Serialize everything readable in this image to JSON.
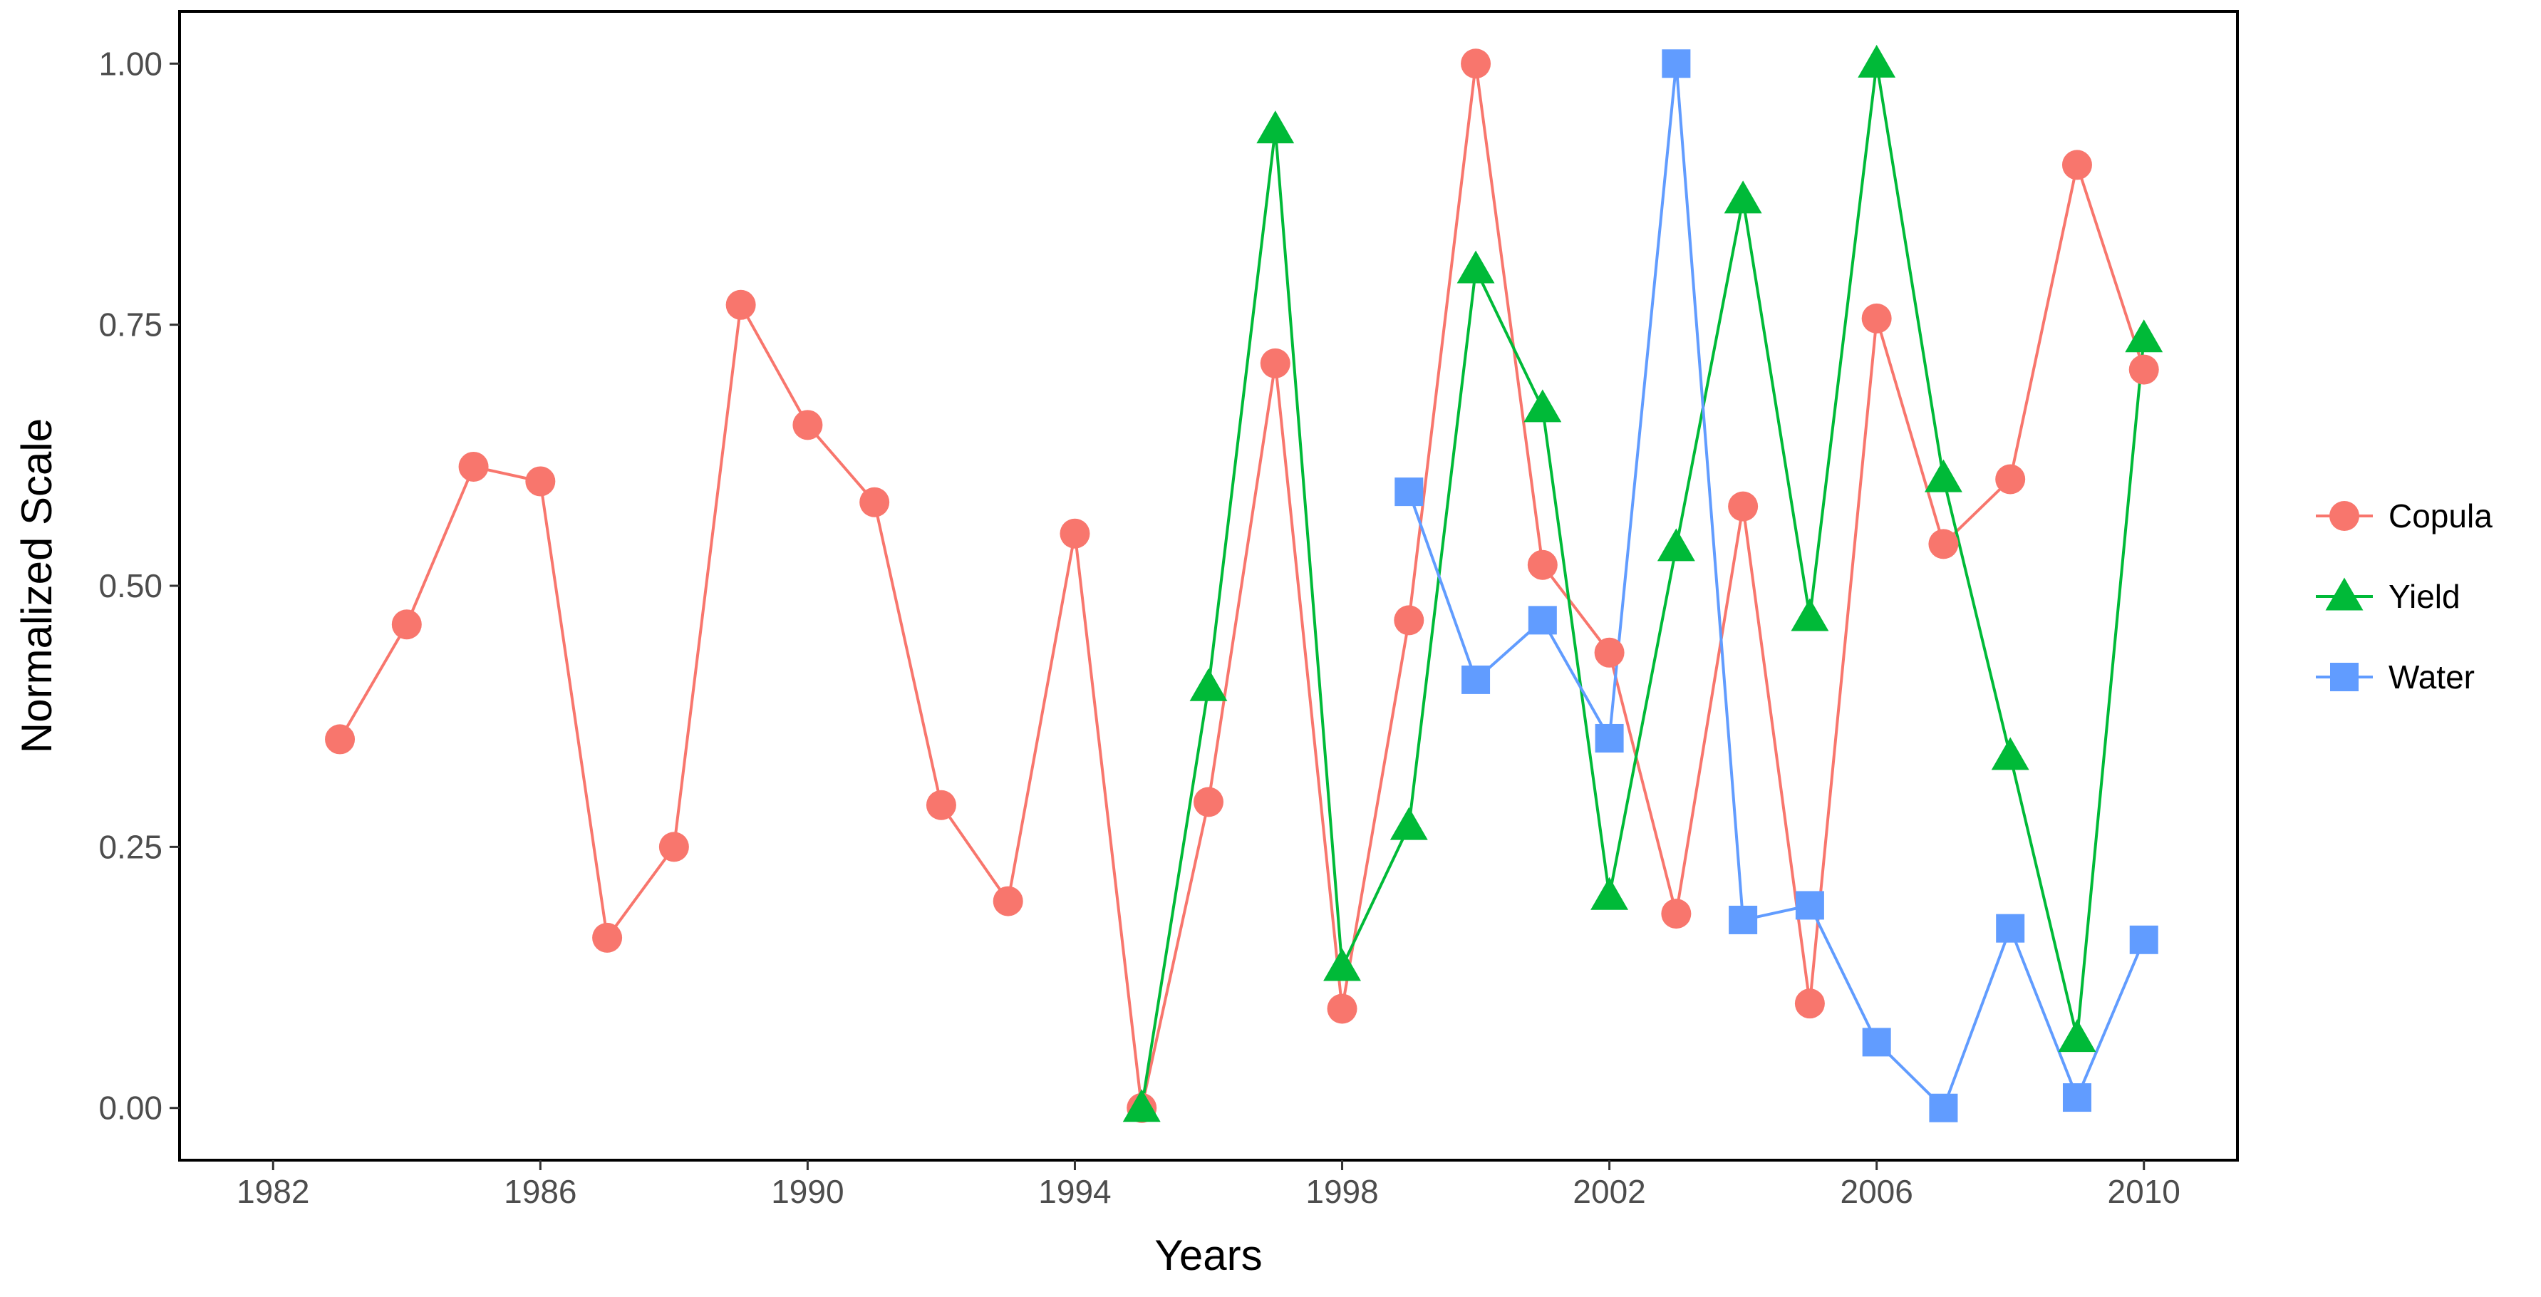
{
  "chart_data": {
    "type": "line",
    "title": "",
    "xlabel": "Years",
    "ylabel": "Normalized Scale",
    "xlim": [
      1980.6,
      2011.4
    ],
    "ylim": [
      -0.05,
      1.05
    ],
    "x_ticks": [
      1982,
      1986,
      1990,
      1994,
      1998,
      2002,
      2006,
      2010
    ],
    "y_ticks": [
      0.0,
      0.25,
      0.5,
      0.75,
      1.0
    ],
    "y_tick_labels": [
      "0.00",
      "0.25",
      "0.50",
      "0.75",
      "1.00"
    ],
    "grid": false,
    "legend_position": "right",
    "series": [
      {
        "name": "Copula",
        "marker": "circle",
        "color": "#F8766D",
        "points": [
          {
            "x": 1983,
            "y": 0.353
          },
          {
            "x": 1984,
            "y": 0.463
          },
          {
            "x": 1985,
            "y": 0.614
          },
          {
            "x": 1986,
            "y": 0.6
          },
          {
            "x": 1987,
            "y": 0.163
          },
          {
            "x": 1988,
            "y": 0.25
          },
          {
            "x": 1989,
            "y": 0.769
          },
          {
            "x": 1990,
            "y": 0.654
          },
          {
            "x": 1991,
            "y": 0.58
          },
          {
            "x": 1992,
            "y": 0.29
          },
          {
            "x": 1993,
            "y": 0.198
          },
          {
            "x": 1994,
            "y": 0.55
          },
          {
            "x": 1995,
            "y": 0.0
          },
          {
            "x": 1996,
            "y": 0.293
          },
          {
            "x": 1997,
            "y": 0.713
          },
          {
            "x": 1998,
            "y": 0.095
          },
          {
            "x": 1999,
            "y": 0.467
          },
          {
            "x": 2000,
            "y": 1.0
          },
          {
            "x": 2001,
            "y": 0.52
          },
          {
            "x": 2002,
            "y": 0.436
          },
          {
            "x": 2003,
            "y": 0.186
          },
          {
            "x": 2004,
            "y": 0.576
          },
          {
            "x": 2005,
            "y": 0.1
          },
          {
            "x": 2006,
            "y": 0.756
          },
          {
            "x": 2007,
            "y": 0.54
          },
          {
            "x": 2008,
            "y": 0.602
          },
          {
            "x": 2009,
            "y": 0.903
          },
          {
            "x": 2010,
            "y": 0.707
          }
        ]
      },
      {
        "name": "Yield",
        "marker": "triangle",
        "color": "#00BA38",
        "points": [
          {
            "x": 1995,
            "y": 0.0
          },
          {
            "x": 1996,
            "y": 0.403
          },
          {
            "x": 1997,
            "y": 0.937
          },
          {
            "x": 1998,
            "y": 0.135
          },
          {
            "x": 1999,
            "y": 0.27
          },
          {
            "x": 2000,
            "y": 0.803
          },
          {
            "x": 2001,
            "y": 0.67
          },
          {
            "x": 2002,
            "y": 0.203
          },
          {
            "x": 2003,
            "y": 0.537
          },
          {
            "x": 2004,
            "y": 0.87
          },
          {
            "x": 2005,
            "y": 0.47
          },
          {
            "x": 2006,
            "y": 1.0
          },
          {
            "x": 2007,
            "y": 0.603
          },
          {
            "x": 2008,
            "y": 0.337
          },
          {
            "x": 2009,
            "y": 0.067
          },
          {
            "x": 2010,
            "y": 0.737
          }
        ]
      },
      {
        "name": "Water",
        "marker": "square",
        "color": "#619CFF",
        "points": [
          {
            "x": 1999,
            "y": 0.59
          },
          {
            "x": 2000,
            "y": 0.41
          },
          {
            "x": 2001,
            "y": 0.467
          },
          {
            "x": 2002,
            "y": 0.354
          },
          {
            "x": 2003,
            "y": 1.0
          },
          {
            "x": 2004,
            "y": 0.18
          },
          {
            "x": 2005,
            "y": 0.194
          },
          {
            "x": 2006,
            "y": 0.063
          },
          {
            "x": 2007,
            "y": 0.0
          },
          {
            "x": 2008,
            "y": 0.172
          },
          {
            "x": 2009,
            "y": 0.01
          },
          {
            "x": 2010,
            "y": 0.161
          }
        ]
      }
    ]
  }
}
